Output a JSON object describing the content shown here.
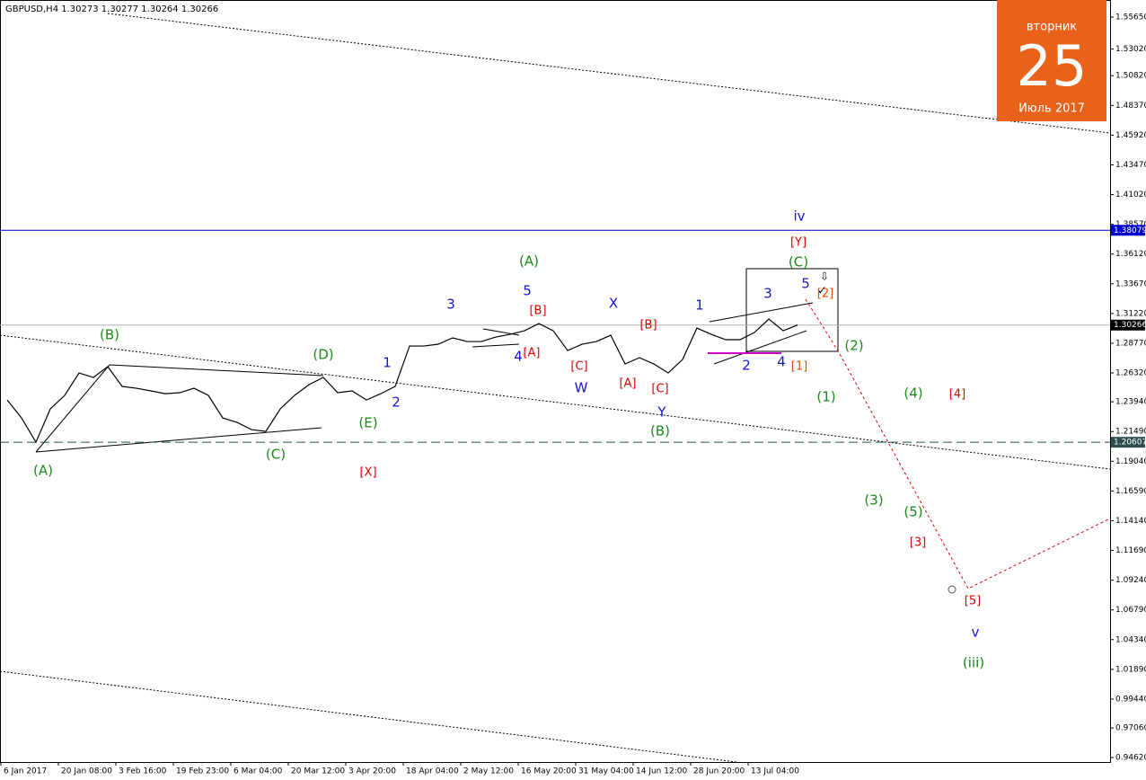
{
  "chart_data": {
    "type": "line",
    "title": "GBPUSD,H4  1.30273 1.30277 1.30264 1.30266",
    "color": "#000000",
    "categories": [
      "6 Jan 2017",
      null,
      null,
      null,
      "20 Jan 08:00",
      null,
      null,
      null,
      "3 Feb 16:00",
      null,
      null,
      null,
      "19 Feb 23:00",
      null,
      null,
      null,
      "6 Mar 04:00",
      null,
      null,
      null,
      "20 Mar 12:00",
      null,
      null,
      null,
      "3 Apr 20:00",
      null,
      null,
      null,
      "18 Apr 04:00",
      null,
      null,
      null,
      "2 May 12:00",
      null,
      null,
      null,
      "16 May 20:00",
      null,
      null,
      null,
      "31 May 04:00",
      null,
      null,
      null,
      "14 Jun 12:00",
      null,
      null,
      null,
      "28 Jun 20:00",
      null,
      null,
      null,
      "13 Jul 04:00",
      null,
      null,
      null,
      null,
      null,
      null,
      null,
      null,
      null,
      null,
      null,
      null,
      null,
      null,
      null,
      null,
      null,
      null,
      null,
      null,
      null,
      null,
      null,
      null
    ],
    "values": [
      1.2409,
      1.2261,
      1.2061,
      1.2335,
      1.2447,
      1.2632,
      1.2595,
      1.2684,
      1.2521,
      1.2506,
      1.2484,
      1.2461,
      1.2469,
      1.2506,
      1.2447,
      1.2261,
      1.2224,
      1.2165,
      1.215,
      1.2335,
      1.2447,
      1.2535,
      1.2595,
      1.2469,
      1.2484,
      1.2409,
      1.2461,
      1.2521,
      1.2854,
      1.2854,
      1.2869,
      1.2921,
      1.2891,
      1.2891,
      1.2928,
      1.295,
      1.298,
      1.3039,
      1.298,
      1.2817,
      1.2869,
      1.2891,
      1.2943,
      1.2706,
      1.2758,
      1.2706,
      1.2632,
      1.2743,
      1.3002,
      1.295,
      1.2906,
      1.2906,
      1.2965,
      1.3076,
      1.298,
      1.3027,
      null,
      null,
      null,
      null,
      null,
      null,
      null,
      null,
      null,
      null,
      null,
      null,
      null,
      null,
      null,
      null,
      null,
      null,
      null,
      null,
      null
    ],
    "ylim": [
      0.9425,
      1.5706
    ],
    "yticks": [
      {
        "value": 1.5565,
        "label": "1.55650"
      },
      {
        "value": 1.5302,
        "label": "1.53020"
      },
      {
        "value": 1.5082,
        "label": "1.50820"
      },
      {
        "value": 1.4837,
        "label": "1.48370"
      },
      {
        "value": 1.4592,
        "label": "1.45920"
      },
      {
        "value": 1.4347,
        "label": "1.43470"
      },
      {
        "value": 1.4102,
        "label": "1.41020"
      },
      {
        "value": 1.3857,
        "label": "1.38570"
      },
      {
        "value": 1.3612,
        "label": "1.36120"
      },
      {
        "value": 1.3367,
        "label": "1.33670"
      },
      {
        "value": 1.3122,
        "label": "1.31220"
      },
      {
        "value": 1.2877,
        "label": "1.28770"
      },
      {
        "value": 1.2632,
        "label": "1.26320"
      },
      {
        "value": 1.2394,
        "label": "1.23940"
      },
      {
        "value": 1.2149,
        "label": "1.21490"
      },
      {
        "value": 1.1904,
        "label": "1.19040"
      },
      {
        "value": 1.1659,
        "label": "1.16590"
      },
      {
        "value": 1.1414,
        "label": "1.14140"
      },
      {
        "value": 1.1169,
        "label": "1.11690"
      },
      {
        "value": 1.0924,
        "label": "1.09240"
      },
      {
        "value": 1.0679,
        "label": "1.06790"
      },
      {
        "value": 1.0434,
        "label": "1.04340"
      },
      {
        "value": 1.0189,
        "label": "1.01890"
      },
      {
        "value": 0.9944,
        "label": "0.99440"
      },
      {
        "value": 0.9706,
        "label": "0.97060"
      },
      {
        "value": 0.9462,
        "label": "0.94620"
      }
    ],
    "levels": [
      {
        "value": 1.38079,
        "label": "1.38079",
        "color": "#0000cc",
        "dash": false
      },
      {
        "value": 1.30266,
        "label": "1.30266",
        "color": "#000000",
        "dash": false
      },
      {
        "value": 1.20607,
        "label": "1.20607",
        "color": "#2f4f4f",
        "dash": true
      }
    ],
    "annotations": [
      {
        "text": "(A)",
        "color": "#1a8a1a"
      },
      {
        "text": "(B)",
        "color": "#1a8a1a"
      },
      {
        "text": "(C)",
        "color": "#1a8a1a"
      },
      {
        "text": "(D)",
        "color": "#1a8a1a"
      },
      {
        "text": "(E)",
        "color": "#1a8a1a"
      },
      {
        "text": "[X]",
        "color": "#e00000"
      },
      {
        "text": "1",
        "color": "#1515d0"
      },
      {
        "text": "2",
        "color": "#1515d0"
      },
      {
        "text": "3",
        "color": "#1515d0"
      },
      {
        "text": "(A)",
        "color": "#1a8a1a"
      },
      {
        "text": "5",
        "color": "#1515d0"
      },
      {
        "text": "[B]",
        "color": "#e00000"
      },
      {
        "text": "4",
        "color": "#1515d0"
      },
      {
        "text": "[A]",
        "color": "#e00000"
      },
      {
        "text": "[C]",
        "color": "#e00000"
      },
      {
        "text": "W",
        "color": "#1515d0"
      },
      {
        "text": "X",
        "color": "#1515d0"
      },
      {
        "text": "[B]",
        "color": "#e00000"
      },
      {
        "text": "[A]",
        "color": "#e00000"
      },
      {
        "text": "[C]",
        "color": "#e00000"
      },
      {
        "text": "Y",
        "color": "#1515d0"
      },
      {
        "text": "(B)",
        "color": "#1a8a1a"
      },
      {
        "text": "1",
        "color": "#1515d0"
      },
      {
        "text": "2",
        "color": "#1515d0"
      },
      {
        "text": "3",
        "color": "#1515d0"
      },
      {
        "text": "4",
        "color": "#1515d0"
      },
      {
        "text": "5",
        "color": "#1515d0"
      },
      {
        "text": "[1]",
        "color": "#e05000"
      },
      {
        "text": "[2]",
        "color": "#e05000"
      },
      {
        "text": "iv",
        "color": "#1515d0"
      },
      {
        "text": "[Y]",
        "color": "#e00000"
      },
      {
        "text": "(C)",
        "color": "#1a8a1a"
      },
      {
        "text": "(2)",
        "color": "#1a8a1a"
      },
      {
        "text": "(1)",
        "color": "#1a8a1a"
      },
      {
        "text": "(4)",
        "color": "#1a8a1a"
      },
      {
        "text": "[4]",
        "color": "#e00000"
      },
      {
        "text": "(3)",
        "color": "#1a8a1a"
      },
      {
        "text": "(5)",
        "color": "#1a8a1a"
      },
      {
        "text": "[3]",
        "color": "#e00000"
      },
      {
        "text": "[5]",
        "color": "#e00000"
      },
      {
        "text": "v",
        "color": "#1515d0"
      },
      {
        "text": "(iii)",
        "color": "#1a8a1a"
      }
    ],
    "date_widget": {
      "weekday": "вторник",
      "day": "25",
      "month": "Июль 2017"
    }
  }
}
